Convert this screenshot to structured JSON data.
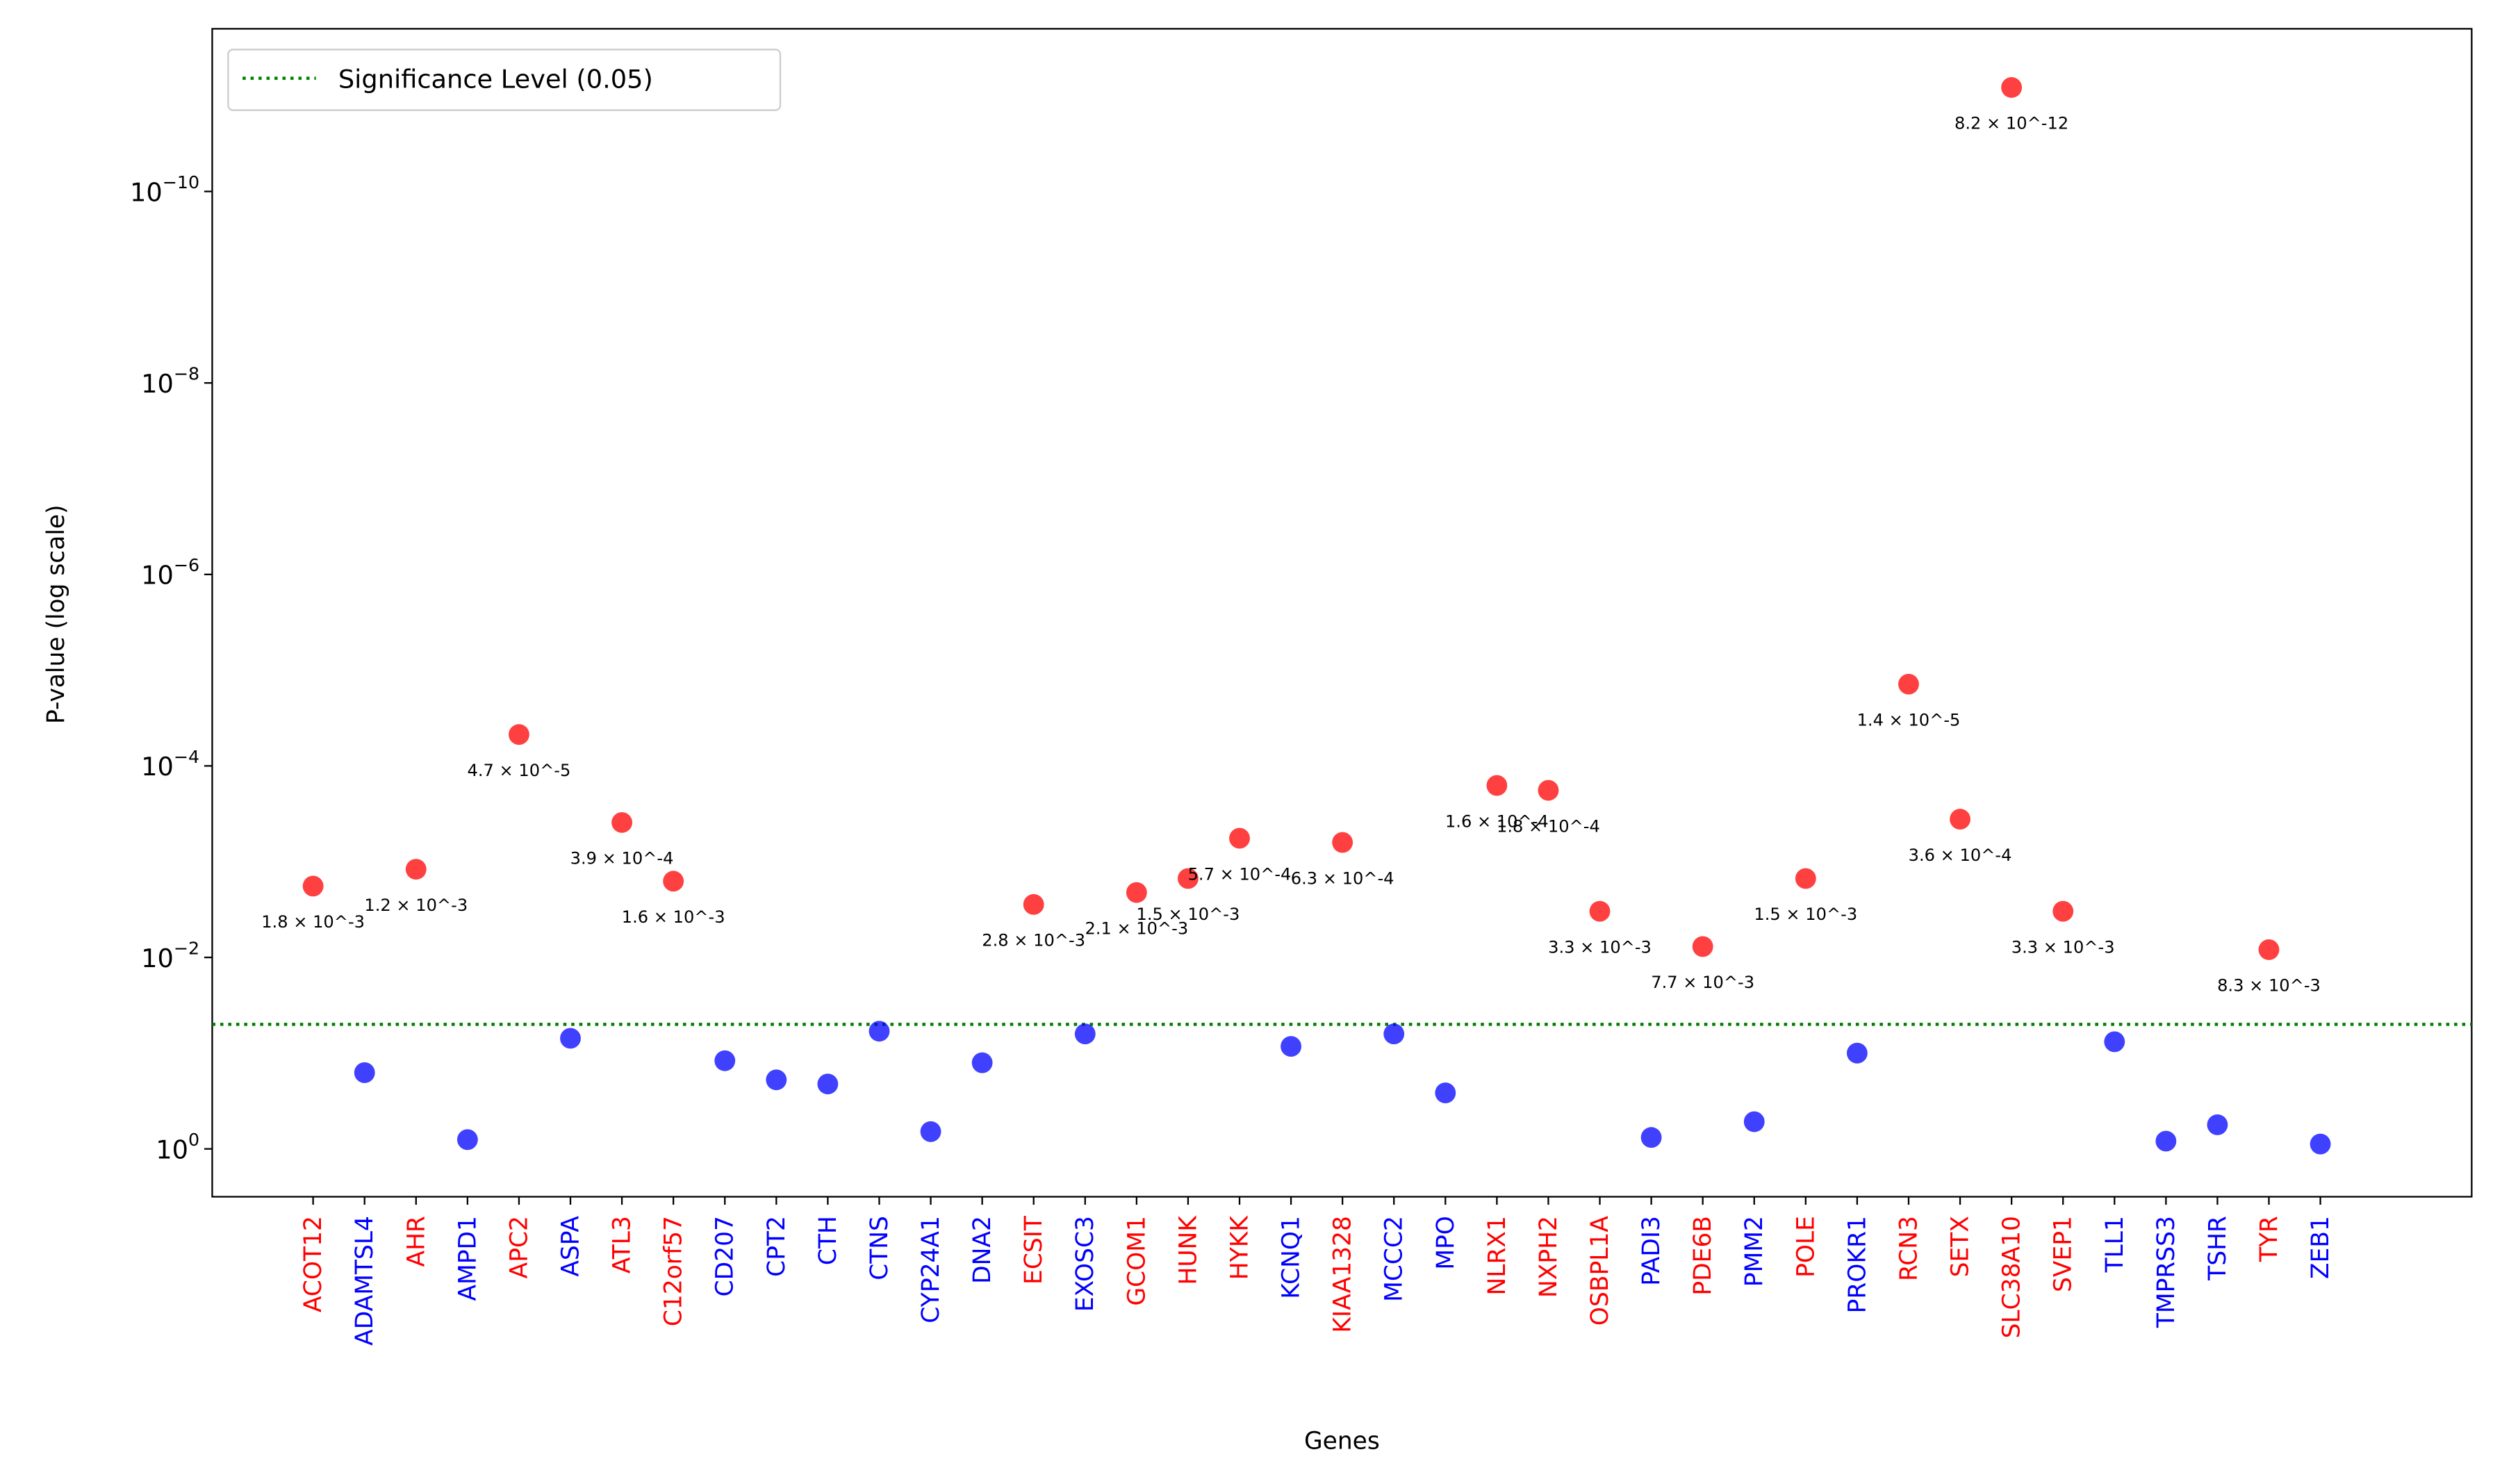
{
  "chart_data": {
    "type": "scatter",
    "x_label": "Genes",
    "y_label": "P-value (log scale)",
    "log_scale": true,
    "legend_location": "upper left",
    "threshold": 0.05,
    "threshold_label": "Significance Level (0.05)",
    "threshold_color": "#008000",
    "categories": [
      "ACOT12",
      "ADAMTSL4",
      "AHR",
      "AMPD1",
      "APC2",
      "ASPA",
      "ATL3",
      "C12orf57",
      "CD207",
      "CPT2",
      "CTH",
      "CTNS",
      "CYP24A1",
      "DNA2",
      "ECSIT",
      "EXOSC3",
      "GCOM1",
      "HUNK",
      "HYKK",
      "KCNQ1",
      "KIAA1328",
      "MCCC2",
      "MPO",
      "NLRX1",
      "NXPH2",
      "OSBPL1A",
      "PADI3",
      "PDE6B",
      "PMM2",
      "POLE",
      "PROKR1",
      "RCN3",
      "SETX",
      "SLC38A10",
      "SVEP1",
      "TLL1",
      "TMPRSS3",
      "TSHR",
      "TYR",
      "ZEB1"
    ],
    "values": [
      0.0018,
      0.16,
      0.0012,
      0.8,
      4.7e-05,
      0.07,
      0.00039,
      0.0016,
      0.12,
      0.19,
      0.21,
      0.059,
      0.66,
      0.126,
      0.0028,
      0.063,
      0.0021,
      0.0015,
      0.00057,
      0.085,
      0.00063,
      0.063,
      0.26,
      0.00016,
      0.00018,
      0.0033,
      0.76,
      0.0077,
      0.52,
      0.0015,
      0.1,
      1.4e-05,
      0.00036,
      8.2e-12,
      0.0033,
      0.076,
      0.83,
      0.56,
      0.0083,
      0.89
    ],
    "value_labels": [
      "1.8 × 10^-3",
      null,
      "1.2 × 10^-3",
      null,
      "4.7 × 10^-5",
      null,
      "3.9 × 10^-4",
      "1.6 × 10^-3",
      null,
      null,
      null,
      null,
      null,
      null,
      "2.8 × 10^-3",
      null,
      "2.1 × 10^-3",
      "1.5 × 10^-3",
      "5.7 × 10^-4",
      null,
      "6.3 × 10^-4",
      null,
      null,
      "1.6 × 10^-4",
      "1.8 × 10^-4",
      "3.3 × 10^-3",
      null,
      "7.7 × 10^-3",
      null,
      "1.5 × 10^-3",
      null,
      "1.4 × 10^-5",
      "3.6 × 10^-4",
      "8.2 × 10^-12",
      "3.3 × 10^-3",
      null,
      null,
      null,
      "8.3 × 10^-3",
      null
    ],
    "colors": [
      "#ff0000",
      "#0000ff",
      "#ff0000",
      "#0000ff",
      "#ff0000",
      "#0000ff",
      "#ff0000",
      "#ff0000",
      "#0000ff",
      "#0000ff",
      "#0000ff",
      "#0000ff",
      "#0000ff",
      "#0000ff",
      "#ff0000",
      "#0000ff",
      "#ff0000",
      "#ff0000",
      "#ff0000",
      "#0000ff",
      "#ff0000",
      "#0000ff",
      "#0000ff",
      "#ff0000",
      "#ff0000",
      "#ff0000",
      "#0000ff",
      "#ff0000",
      "#0000ff",
      "#ff0000",
      "#0000ff",
      "#ff0000",
      "#ff0000",
      "#ff0000",
      "#ff0000",
      "#0000ff",
      "#0000ff",
      "#0000ff",
      "#ff0000",
      "#0000ff"
    ],
    "ylim": [
      3.16,
      2e-12
    ],
    "yticks": [
      {
        "value": 1,
        "label": "10^0"
      },
      {
        "value": 0.01,
        "label": "10^−2"
      },
      {
        "value": 0.0001,
        "label": "10^−4"
      },
      {
        "value": 1e-06,
        "label": "10^−6"
      },
      {
        "value": 1e-08,
        "label": "10^−8"
      },
      {
        "value": 1e-10,
        "label": "10^−10"
      }
    ]
  }
}
